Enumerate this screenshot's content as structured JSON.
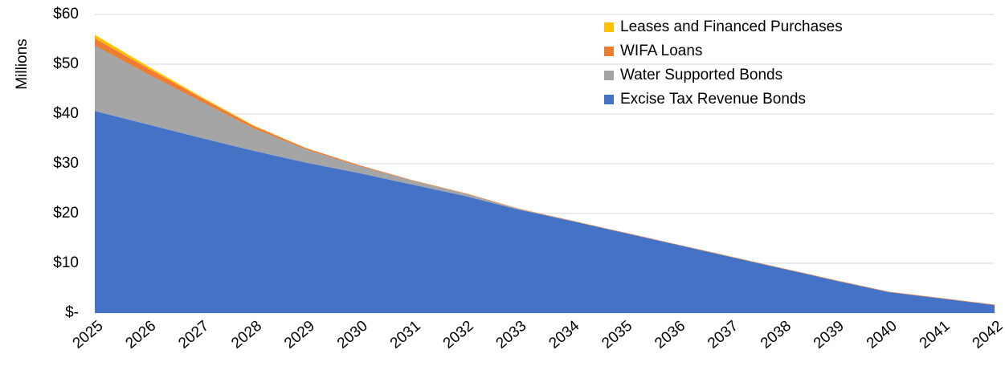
{
  "chart_data": {
    "type": "stacked_area",
    "ylabel": "Millions",
    "categories": [
      "2025",
      "2026",
      "2027",
      "2028",
      "2029",
      "2030",
      "2031",
      "2032",
      "2033",
      "2034",
      "2035",
      "2036",
      "2037",
      "2038",
      "2039",
      "2040",
      "2041",
      "2042"
    ],
    "series": [
      {
        "name": "Excise Tax Revenue Bonds",
        "color": "#4472c4",
        "values": [
          40.6,
          37.9,
          35.2,
          32.6,
          30.2,
          28.1,
          25.8,
          23.5,
          20.8,
          18.5,
          16.1,
          13.7,
          11.3,
          8.9,
          6.5,
          4.2,
          2.9,
          1.6
        ]
      },
      {
        "name": "Water Supported Bonds",
        "color": "#a5a5a5",
        "values": [
          13.1,
          10.1,
          7.3,
          4.5,
          2.6,
          1.4,
          0.8,
          0.5,
          0.1,
          0,
          0,
          0,
          0,
          0,
          0,
          0,
          0,
          0
        ]
      },
      {
        "name": "WIFA Loans",
        "color": "#ed7d31",
        "values": [
          1.5,
          1.2,
          0.8,
          0.5,
          0.3,
          0.2,
          0.1,
          0.1,
          0.1,
          0.1,
          0.1,
          0.1,
          0.1,
          0.1,
          0.1,
          0.1,
          0.1,
          0.1
        ]
      },
      {
        "name": "Leases and Financed Purchases",
        "color": "#ffc000",
        "values": [
          0.7,
          0.4,
          0.2,
          0.1,
          0,
          0,
          0,
          0,
          0,
          0,
          0,
          0,
          0,
          0,
          0,
          0,
          0,
          0
        ]
      }
    ],
    "ylim": [
      0,
      60
    ],
    "yticks": [
      {
        "value": 0,
        "label": "$-"
      },
      {
        "value": 10,
        "label": "$10"
      },
      {
        "value": 20,
        "label": "$20"
      },
      {
        "value": 30,
        "label": "$30"
      },
      {
        "value": 40,
        "label": "$40"
      },
      {
        "value": 50,
        "label": "$50"
      },
      {
        "value": 60,
        "label": "$60"
      }
    ],
    "grid": true,
    "legend": "upper right"
  }
}
